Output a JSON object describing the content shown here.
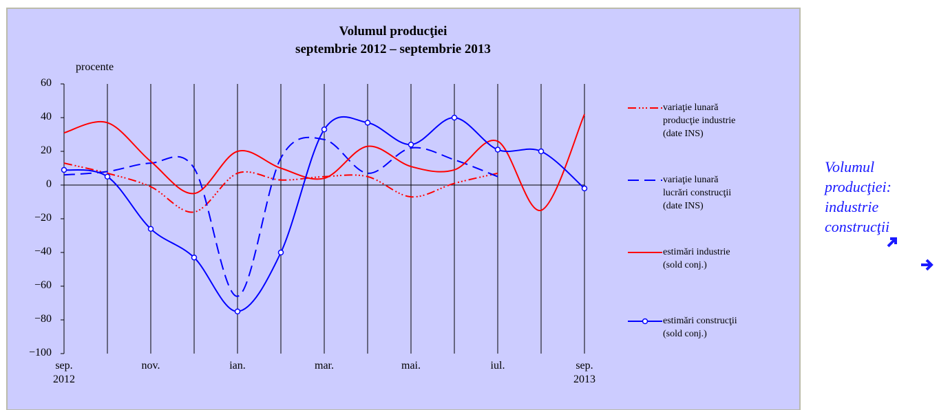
{
  "chart_data": {
    "type": "line",
    "title": "Volumul producţiei",
    "subtitle": "septembrie 2012 – septembrie 2013",
    "y_label": "procente",
    "categories": [
      "sep.\n2012",
      null,
      "nov.",
      null,
      "ian.",
      null,
      "mar.",
      null,
      "mai.",
      null,
      "iul.",
      null,
      "sep.\n2013"
    ],
    "series": [
      {
        "name": "variaţie lunară\nproducţie industrie\n(date INS)",
        "color": "#ff0000",
        "style": "dashdot",
        "values": [
          13,
          7,
          -1,
          -16,
          7,
          3,
          5,
          5,
          -7,
          1,
          7,
          null,
          null
        ]
      },
      {
        "name": "variaţie lunară\nlucrări construcţii\n(date INS)",
        "color": "#0000ff",
        "style": "dashed",
        "values": [
          6,
          8,
          13,
          10,
          -66,
          16,
          27,
          7,
          22,
          15,
          5,
          null,
          null
        ]
      },
      {
        "name": "estimări industrie\n(sold conj.)",
        "color": "#ff0000",
        "style": "solid",
        "values": [
          31,
          37,
          14,
          -5,
          20,
          10,
          4,
          23,
          11,
          9,
          26,
          -15,
          42
        ]
      },
      {
        "name": "estimări construcţii\n(sold conj.)",
        "color": "#0000ff",
        "style": "solid",
        "marker": "circle",
        "values": [
          9,
          5,
          -26,
          -43,
          -75,
          -40,
          33,
          37,
          24,
          40,
          21,
          20,
          -2
        ]
      }
    ],
    "ylim": [
      -100,
      60
    ],
    "yticks": [
      {
        "value": -100,
        "label": "−100"
      },
      {
        "value": -80,
        "label": "−80"
      },
      {
        "value": -60,
        "label": "−60"
      },
      {
        "value": -40,
        "label": "−40"
      },
      {
        "value": -20,
        "label": "−20"
      },
      0,
      20,
      40,
      60
    ],
    "grid": "x",
    "legend": "right",
    "side_note": [
      "Volumul",
      "producţiei:",
      "industrie",
      "construcţii"
    ]
  }
}
